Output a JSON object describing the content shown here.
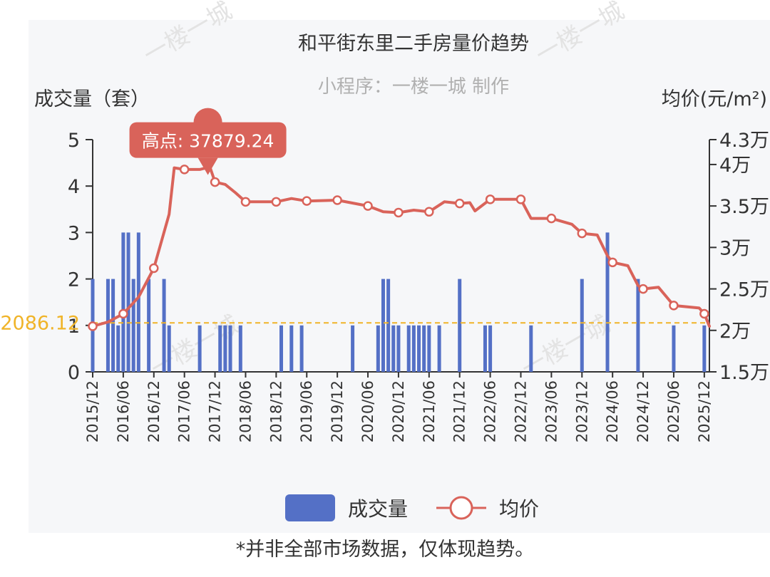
{
  "chart_data": {
    "type": "bar+line",
    "title": "和平街东里二手房量价趋势",
    "subtitle": "小程序：一楼一城 制作",
    "y_left": {
      "name": "成交量（套）",
      "min": 0,
      "max": 5,
      "ticks": [
        "0",
        "1",
        "2",
        "3",
        "4",
        "5"
      ]
    },
    "y_right": {
      "name": "均价(元/m²)",
      "min": 15000,
      "max": 43000,
      "ticks": [
        {
          "v": 15000,
          "label": "1.5万"
        },
        {
          "v": 20000,
          "label": "2万"
        },
        {
          "v": 25000,
          "label": "2.5万"
        },
        {
          "v": 30000,
          "label": "3万"
        },
        {
          "v": 35000,
          "label": "3.5万"
        },
        {
          "v": 40000,
          "label": "4万"
        },
        {
          "v": 43000,
          "label": "4.3万"
        }
      ]
    },
    "x_ticks": [
      "2015/12",
      "2016/06",
      "2016/12",
      "2017/06",
      "2017/12",
      "2018/06",
      "2018/12",
      "2019/06",
      "2019/12",
      "2020/06",
      "2020/12",
      "2021/06",
      "2021/12",
      "2022/06",
      "2022/12",
      "2023/06",
      "2023/12",
      "2024/06",
      "2024/12",
      "2025/06",
      "2025/12"
    ],
    "series": [
      {
        "name": "成交量",
        "type": "bar",
        "color": "#5470c6",
        "points": [
          [
            "2015/12",
            2
          ],
          [
            "2016/03",
            2
          ],
          [
            "2016/04",
            2
          ],
          [
            "2016/05",
            1
          ],
          [
            "2016/06",
            3
          ],
          [
            "2016/07",
            3
          ],
          [
            "2016/08",
            2
          ],
          [
            "2016/09",
            3
          ],
          [
            "2016/11",
            2
          ],
          [
            "2017/02",
            2
          ],
          [
            "2017/03",
            1
          ],
          [
            "2017/09",
            1
          ],
          [
            "2018/01",
            1
          ],
          [
            "2018/02",
            1
          ],
          [
            "2018/03",
            1
          ],
          [
            "2018/05",
            1
          ],
          [
            "2019/01",
            1
          ],
          [
            "2019/03",
            1
          ],
          [
            "2019/05",
            1
          ],
          [
            "2020/03",
            1
          ],
          [
            "2020/08",
            1
          ],
          [
            "2020/09",
            2
          ],
          [
            "2020/10",
            2
          ],
          [
            "2020/11",
            1
          ],
          [
            "2020/12",
            1
          ],
          [
            "2021/02",
            1
          ],
          [
            "2021/03",
            1
          ],
          [
            "2021/04",
            1
          ],
          [
            "2021/05",
            1
          ],
          [
            "2021/06",
            1
          ],
          [
            "2021/08",
            1
          ],
          [
            "2021/12",
            2
          ],
          [
            "2022/05",
            1
          ],
          [
            "2022/06",
            1
          ],
          [
            "2023/02",
            1
          ],
          [
            "2023/12",
            2
          ],
          [
            "2024/05",
            3
          ],
          [
            "2024/11",
            2
          ],
          [
            "2025/06",
            1
          ],
          [
            "2025/12",
            1
          ]
        ]
      },
      {
        "name": "均价",
        "type": "line",
        "color": "#d9635a",
        "points": [
          [
            "2015/12",
            20500
          ],
          [
            "2016/03",
            21000
          ],
          [
            "2016/06",
            22000
          ],
          [
            "2016/09",
            24000
          ],
          [
            "2016/12",
            27500
          ],
          [
            "2017/03",
            34000
          ],
          [
            "2017/04",
            39600
          ],
          [
            "2017/06",
            39400
          ],
          [
            "2017/09",
            39400
          ],
          [
            "2017/11",
            39700
          ],
          [
            "2017/12",
            37879.24
          ],
          [
            "2018/02",
            37600
          ],
          [
            "2018/04",
            36600
          ],
          [
            "2018/06",
            35500
          ],
          [
            "2018/12",
            35500
          ],
          [
            "2019/03",
            35900
          ],
          [
            "2019/06",
            35600
          ],
          [
            "2019/12",
            35700
          ],
          [
            "2020/06",
            35000
          ],
          [
            "2020/09",
            34300
          ],
          [
            "2020/12",
            34200
          ],
          [
            "2021/03",
            34500
          ],
          [
            "2021/06",
            34300
          ],
          [
            "2021/09",
            35500
          ],
          [
            "2021/12",
            35300
          ],
          [
            "2022/02",
            35400
          ],
          [
            "2022/03",
            34400
          ],
          [
            "2022/06",
            35800
          ],
          [
            "2022/12",
            35800
          ],
          [
            "2023/02",
            33500
          ],
          [
            "2023/06",
            33500
          ],
          [
            "2023/10",
            32800
          ],
          [
            "2023/12",
            31700
          ],
          [
            "2024/03",
            31500
          ],
          [
            "2024/05",
            29000
          ],
          [
            "2024/06",
            28200
          ],
          [
            "2024/09",
            27800
          ],
          [
            "2024/11",
            25400
          ],
          [
            "2024/12",
            25000
          ],
          [
            "2025/03",
            25200
          ],
          [
            "2025/06",
            23000
          ],
          [
            "2025/11",
            22700
          ],
          [
            "2025/12",
            22000
          ],
          [
            "2026/01",
            20500
          ]
        ]
      }
    ],
    "reference_line": {
      "label": "2086.12",
      "value": 20900,
      "axis": "right",
      "color": "#f0b429"
    },
    "annotation": {
      "label": "高点: 37879.24",
      "x": "2017/12",
      "value": 37879.24,
      "color": "#d9635a"
    },
    "legend": {
      "position": "bottom",
      "items": [
        "成交量",
        "均价"
      ]
    }
  },
  "footnote": "*并非全部市场数据，仅体现趋势。",
  "watermark": "一楼一城"
}
